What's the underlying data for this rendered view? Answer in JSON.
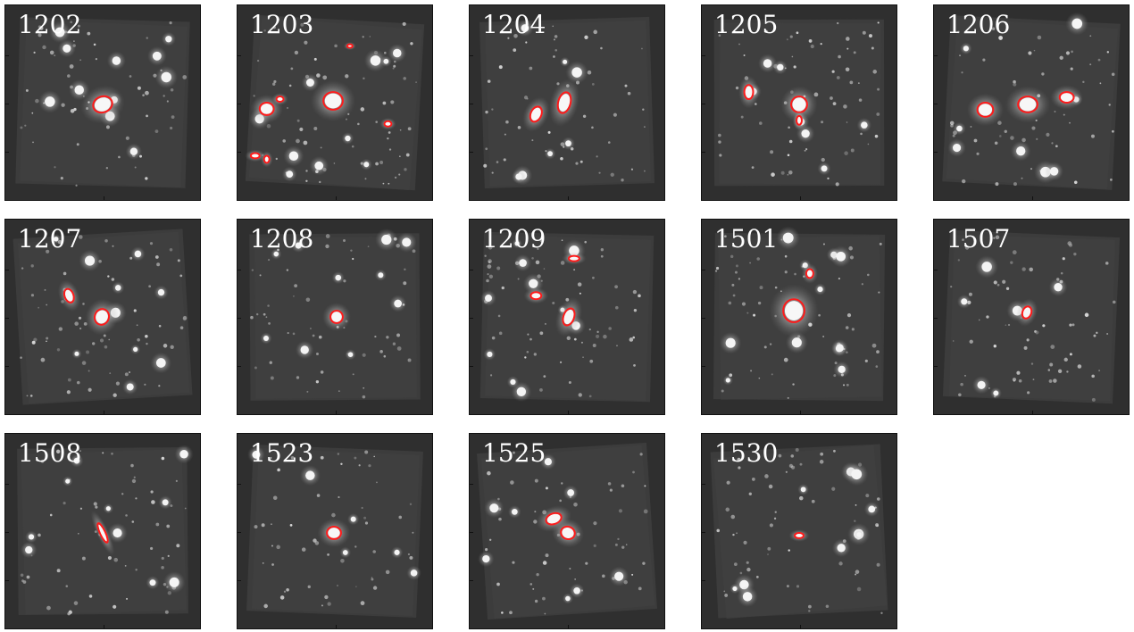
{
  "colors": {
    "background": "#2f2f2f",
    "frame": "#111111",
    "marker": "#ff1a1a",
    "text": "#ffffff"
  },
  "panels": [
    {
      "id": "1202",
      "markers": 1
    },
    {
      "id": "1203",
      "markers": 7
    },
    {
      "id": "1204",
      "markers": 2
    },
    {
      "id": "1205",
      "markers": 3
    },
    {
      "id": "1206",
      "markers": 3
    },
    {
      "id": "1207",
      "markers": 2
    },
    {
      "id": "1208",
      "markers": 1
    },
    {
      "id": "1209",
      "markers": 3
    },
    {
      "id": "1501",
      "markers": 2
    },
    {
      "id": "1507",
      "markers": 1
    },
    {
      "id": "1508",
      "markers": 1
    },
    {
      "id": "1523",
      "markers": 1
    },
    {
      "id": "1525",
      "markers": 2
    },
    {
      "id": "1530",
      "markers": 1
    }
  ]
}
